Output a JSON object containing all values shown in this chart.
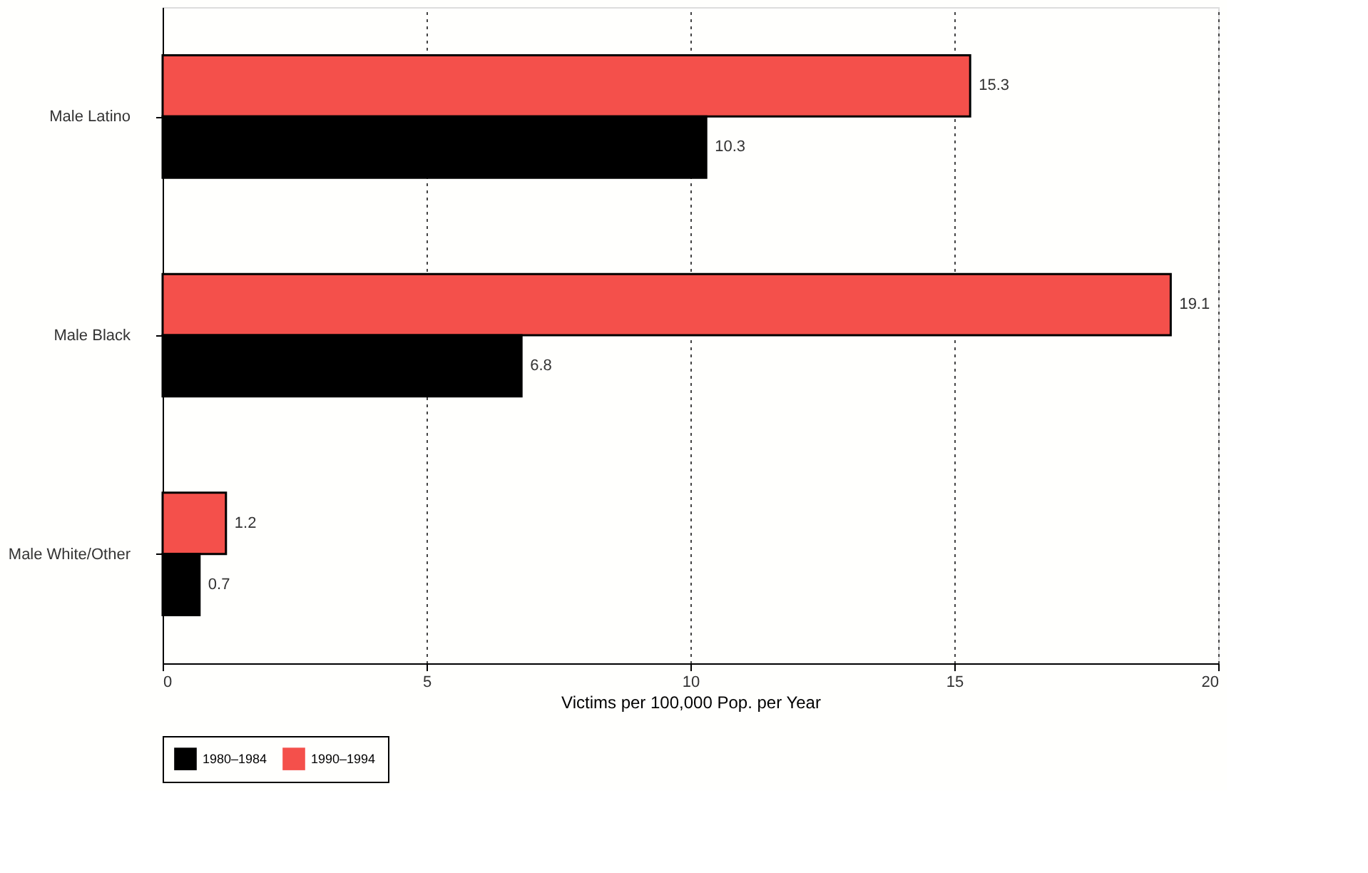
{
  "chart_data": {
    "type": "bar",
    "orientation": "horizontal",
    "xlabel": "Victims per 100,000 Pop. per Year",
    "categories": [
      "Male Latino",
      "Male Black",
      "Male White/Other"
    ],
    "series": [
      {
        "name": "1990–1994",
        "color": "#f4504b",
        "values": [
          15.3,
          19.1,
          1.2
        ]
      },
      {
        "name": "1980–1984",
        "color": "#000000",
        "values": [
          10.3,
          6.8,
          0.7
        ]
      }
    ],
    "xlim": [
      0,
      20
    ],
    "xticks": [
      0,
      5,
      10,
      15,
      20
    ],
    "grid": "x",
    "legend": "bottom",
    "data_labels": true
  }
}
